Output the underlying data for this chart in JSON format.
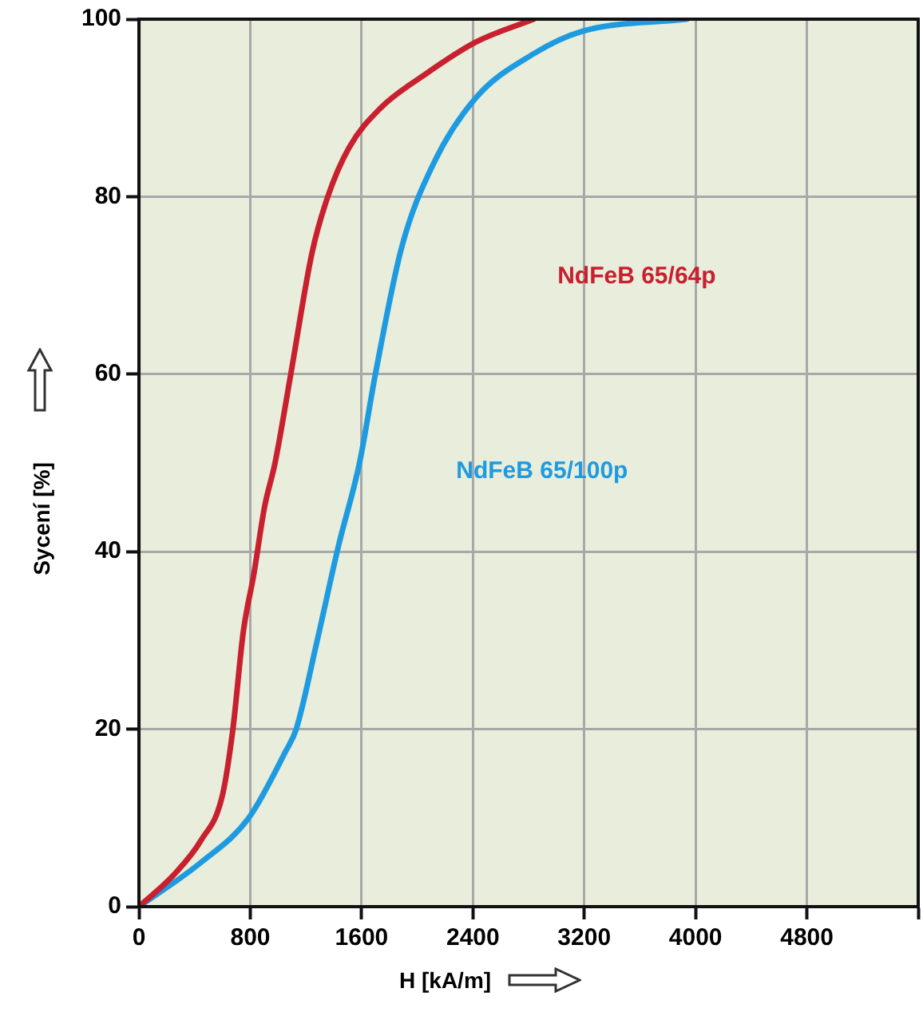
{
  "chart_data": {
    "type": "line",
    "xlabel": "H [kA/m]",
    "ylabel": "Sycení [%]",
    "xlim": [
      0,
      5600
    ],
    "xticks": [
      0,
      800,
      1600,
      2400,
      3200,
      4000,
      4800,
      {
        "value": 5600,
        "label": null
      }
    ],
    "ylim": [
      0,
      100
    ],
    "yticks": [
      0,
      20,
      40,
      60,
      80,
      100
    ],
    "grid": true,
    "legend": false,
    "marker": "none",
    "line_style": "solid",
    "series": [
      {
        "name": "NdFeB 65/64p",
        "color": "#c8202e",
        "x": [
          0,
          257,
          447,
          599,
          675,
          750,
          826,
          902,
          978,
          1091,
          1244,
          1357,
          1509,
          1737,
          2040,
          2419,
          2836
        ],
        "values": [
          0,
          3.7,
          7.5,
          12.5,
          20,
          31,
          37.5,
          45,
          50,
          60,
          73.7,
          80,
          85.5,
          90,
          93.6,
          97.4,
          100
        ]
      },
      {
        "name": "NdFeB 65/100p",
        "color": "#1e9be0",
        "x": [
          0,
          447,
          789,
          1054,
          1130,
          1281,
          1433,
          1585,
          1699,
          1888,
          2116,
          2419,
          2836,
          3178,
          3937
        ],
        "values": [
          0,
          5,
          10,
          17.5,
          20,
          30,
          40.6,
          50,
          60,
          74.3,
          83.7,
          91.1,
          96.1,
          98.6,
          100
        ]
      }
    ]
  }
}
